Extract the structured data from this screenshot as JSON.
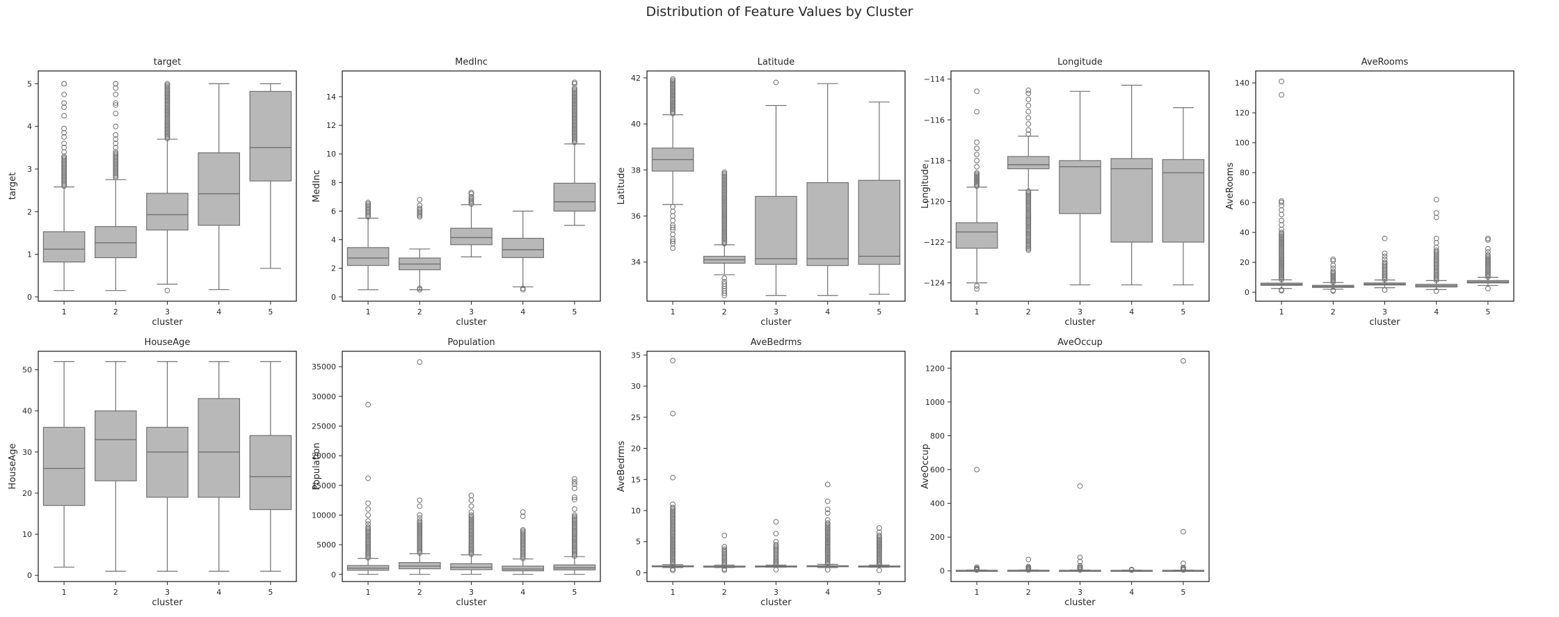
{
  "figure": {
    "suptitle": "Distribution of Feature Values by Cluster",
    "box_color": "#b8b8b8",
    "edge_color": "#707070"
  },
  "chart_data": [
    {
      "type": "box",
      "title": "target",
      "xlabel": "cluster",
      "ylabel": "target",
      "categories": [
        "1",
        "2",
        "3",
        "4",
        "5"
      ],
      "ylim": [
        -0.1,
        5.3
      ],
      "yticks": [
        0,
        1,
        2,
        3,
        4,
        5
      ],
      "boxes": [
        {
          "q1": 0.82,
          "median": 1.12,
          "q3": 1.53,
          "whisker_low": 0.15,
          "whisker_high": 2.58,
          "outliers_dense": [
            2.6,
            3.3
          ],
          "outliers": [
            3.4,
            3.5,
            3.6,
            3.75,
            3.85,
            3.95,
            4.25,
            4.45,
            4.55,
            4.75,
            5.0,
            5.0
          ]
        },
        {
          "q1": 0.92,
          "median": 1.27,
          "q3": 1.65,
          "whisker_low": 0.15,
          "whisker_high": 2.75,
          "outliers_dense": [
            2.8,
            3.4
          ],
          "outliers": [
            3.5,
            3.6,
            3.7,
            3.8,
            4.0,
            4.3,
            4.5,
            4.55,
            4.75,
            4.9,
            5.0,
            5.0
          ]
        },
        {
          "q1": 1.57,
          "median": 1.93,
          "q3": 2.43,
          "whisker_low": 0.3,
          "whisker_high": 3.7,
          "outliers_dense": [
            3.72,
            5.0
          ],
          "outliers": [
            0.15
          ]
        },
        {
          "q1": 1.68,
          "median": 2.42,
          "q3": 3.38,
          "whisker_low": 0.17,
          "whisker_high": 5.0,
          "outliers_dense": [],
          "outliers": []
        },
        {
          "q1": 2.72,
          "median": 3.5,
          "q3": 4.82,
          "whisker_low": 0.67,
          "whisker_high": 5.0,
          "outliers_dense": [],
          "outliers": []
        }
      ]
    },
    {
      "type": "box",
      "title": "MedInc",
      "xlabel": "cluster",
      "ylabel": "MedInc",
      "categories": [
        "1",
        "2",
        "3",
        "4",
        "5"
      ],
      "ylim": [
        -0.3,
        15.8
      ],
      "yticks": [
        0,
        2,
        4,
        6,
        8,
        10,
        12,
        14
      ],
      "boxes": [
        {
          "q1": 2.2,
          "median": 2.72,
          "q3": 3.45,
          "whisker_low": 0.5,
          "whisker_high": 5.5,
          "outliers_dense": [
            5.6,
            6.5
          ],
          "outliers": [
            6.6
          ]
        },
        {
          "q1": 1.9,
          "median": 2.3,
          "q3": 2.72,
          "whisker_low": 0.5,
          "whisker_high": 3.35,
          "outliers_dense": [
            5.6,
            6.2
          ],
          "outliers": [
            0.5,
            0.6,
            6.4,
            6.8
          ]
        },
        {
          "q1": 3.65,
          "median": 4.15,
          "q3": 4.8,
          "whisker_low": 2.8,
          "whisker_high": 6.45,
          "outliers_dense": [
            6.5,
            7.0
          ],
          "outliers": [
            7.2,
            7.3
          ]
        },
        {
          "q1": 2.75,
          "median": 3.3,
          "q3": 4.1,
          "whisker_low": 0.7,
          "whisker_high": 6.0,
          "outliers_dense": [],
          "outliers": [
            0.5,
            0.6
          ]
        },
        {
          "q1": 6.0,
          "median": 6.65,
          "q3": 7.95,
          "whisker_low": 5.0,
          "whisker_high": 10.7,
          "outliers_dense": [
            10.8,
            14.6
          ],
          "outliers": [
            14.9,
            15.0,
            15.0
          ]
        }
      ]
    },
    {
      "type": "box",
      "title": "Latitude",
      "xlabel": "cluster",
      "ylabel": "Latitude",
      "categories": [
        "1",
        "2",
        "3",
        "4",
        "5"
      ],
      "ylim": [
        32.3,
        42.3
      ],
      "yticks": [
        34,
        36,
        38,
        40,
        42
      ],
      "boxes": [
        {
          "q1": 37.95,
          "median": 38.45,
          "q3": 38.95,
          "whisker_low": 36.5,
          "whisker_high": 40.4,
          "outliers_dense": [
            40.45,
            41.95
          ],
          "outliers": [
            34.6,
            34.8,
            34.9,
            35.0,
            35.2,
            35.4,
            35.5,
            35.6,
            35.8,
            36.0,
            36.2,
            36.4
          ]
        },
        {
          "q1": 33.95,
          "median": 34.1,
          "q3": 34.25,
          "whisker_low": 33.45,
          "whisker_high": 34.75,
          "outliers_dense": [
            34.8,
            37.9
          ],
          "outliers": [
            32.55,
            32.65,
            32.75,
            32.85,
            32.95,
            33.05,
            33.15,
            33.3
          ]
        },
        {
          "q1": 33.9,
          "median": 34.15,
          "q3": 36.85,
          "whisker_low": 32.55,
          "whisker_high": 40.8,
          "outliers_dense": [],
          "outliers": [
            41.8
          ]
        },
        {
          "q1": 33.85,
          "median": 34.15,
          "q3": 37.45,
          "whisker_low": 32.55,
          "whisker_high": 41.75,
          "outliers_dense": [],
          "outliers": []
        },
        {
          "q1": 33.9,
          "median": 34.25,
          "q3": 37.55,
          "whisker_low": 32.6,
          "whisker_high": 40.95,
          "outliers_dense": [],
          "outliers": []
        }
      ]
    },
    {
      "type": "box",
      "title": "Longitude",
      "xlabel": "cluster",
      "ylabel": "Longitude",
      "categories": [
        "1",
        "2",
        "3",
        "4",
        "5"
      ],
      "ylim": [
        -124.9,
        -113.6
      ],
      "yticks": [
        -124,
        -122,
        -120,
        -118,
        -116,
        -114
      ],
      "boxes": [
        {
          "q1": -122.3,
          "median": -121.5,
          "q3": -121.05,
          "whisker_low": -124.0,
          "whisker_high": -119.3,
          "outliers_dense": [
            -119.25,
            -118.6
          ],
          "outliers": [
            -124.3,
            -124.15,
            -118.3,
            -118.0,
            -117.7,
            -117.4,
            -117.1,
            -115.6,
            -114.6
          ]
        },
        {
          "q1": -118.4,
          "median": -118.2,
          "q3": -117.8,
          "whisker_low": -119.45,
          "whisker_high": -116.8,
          "outliers_dense": [
            -122.4,
            -119.5
          ],
          "outliers": [
            -116.7,
            -116.5,
            -116.2,
            -115.9,
            -115.6,
            -115.3,
            -115.0,
            -114.7,
            -114.55
          ]
        },
        {
          "q1": -120.6,
          "median": -118.3,
          "q3": -118.0,
          "whisker_low": -124.1,
          "whisker_high": -114.6,
          "outliers_dense": [],
          "outliers": []
        },
        {
          "q1": -122.0,
          "median": -118.4,
          "q3": -117.9,
          "whisker_low": -124.1,
          "whisker_high": -114.3,
          "outliers_dense": [],
          "outliers": []
        },
        {
          "q1": -122.0,
          "median": -118.6,
          "q3": -117.95,
          "whisker_low": -124.1,
          "whisker_high": -115.4,
          "outliers_dense": [],
          "outliers": []
        }
      ]
    },
    {
      "type": "box",
      "title": "AveRooms",
      "xlabel": "cluster",
      "ylabel": "AveRooms",
      "categories": [
        "1",
        "2",
        "3",
        "4",
        "5"
      ],
      "ylim": [
        -6,
        148
      ],
      "yticks": [
        0,
        20,
        40,
        60,
        80,
        100,
        120,
        140
      ],
      "boxes": [
        {
          "q1": 4.6,
          "median": 5.3,
          "q3": 6.1,
          "whisker_low": 2.5,
          "whisker_high": 8.3,
          "outliers_dense": [
            8.5,
            40
          ],
          "outliers": [
            1.0,
            1.5,
            42,
            45,
            48,
            52,
            55,
            58,
            60,
            61,
            132,
            141
          ]
        },
        {
          "q1": 3.2,
          "median": 3.9,
          "q3": 4.6,
          "whisker_low": 2.0,
          "whisker_high": 6.5,
          "outliers_dense": [
            6.7,
            14
          ],
          "outliers": [
            0.8,
            1.2,
            16,
            18,
            21,
            22
          ]
        },
        {
          "q1": 4.8,
          "median": 5.4,
          "q3": 6.2,
          "whisker_low": 3.0,
          "whisker_high": 8.2,
          "outliers_dense": [
            8.4,
            20
          ],
          "outliers": [
            1.5,
            22,
            24,
            26,
            36
          ]
        },
        {
          "q1": 3.5,
          "median": 4.3,
          "q3": 5.3,
          "whisker_low": 1.8,
          "whisker_high": 7.8,
          "outliers_dense": [
            8.0,
            28
          ],
          "outliers": [
            0.8,
            30,
            33,
            36,
            50,
            53,
            62
          ]
        },
        {
          "q1": 6.2,
          "median": 6.9,
          "q3": 7.8,
          "whisker_low": 4.5,
          "whisker_high": 10.0,
          "outliers_dense": [
            10.2,
            25
          ],
          "outliers": [
            2.5,
            27,
            29,
            35,
            36
          ]
        }
      ]
    },
    {
      "type": "box",
      "title": "HouseAge",
      "xlabel": "cluster",
      "ylabel": "HouseAge",
      "categories": [
        "1",
        "2",
        "3",
        "4",
        "5"
      ],
      "ylim": [
        -1.5,
        54.5
      ],
      "yticks": [
        0,
        10,
        20,
        30,
        40,
        50
      ],
      "boxes": [
        {
          "q1": 17,
          "median": 26,
          "q3": 36,
          "whisker_low": 2,
          "whisker_high": 52,
          "outliers_dense": [],
          "outliers": []
        },
        {
          "q1": 23,
          "median": 33,
          "q3": 40,
          "whisker_low": 1,
          "whisker_high": 52,
          "outliers_dense": [],
          "outliers": []
        },
        {
          "q1": 19,
          "median": 30,
          "q3": 36,
          "whisker_low": 1,
          "whisker_high": 52,
          "outliers_dense": [],
          "outliers": []
        },
        {
          "q1": 19,
          "median": 30,
          "q3": 43,
          "whisker_low": 1,
          "whisker_high": 52,
          "outliers_dense": [],
          "outliers": []
        },
        {
          "q1": 16,
          "median": 24,
          "q3": 34,
          "whisker_low": 1,
          "whisker_high": 52,
          "outliers_dense": [],
          "outliers": []
        }
      ]
    },
    {
      "type": "box",
      "title": "Population",
      "xlabel": "cluster",
      "ylabel": "Population",
      "categories": [
        "1",
        "2",
        "3",
        "4",
        "5"
      ],
      "ylim": [
        -1200,
        37600
      ],
      "yticks": [
        0,
        5000,
        10000,
        15000,
        20000,
        25000,
        30000,
        35000
      ],
      "boxes": [
        {
          "q1": 700,
          "median": 1050,
          "q3": 1500,
          "whisker_low": 10,
          "whisker_high": 2700,
          "outliers_dense": [
            2800,
            8000
          ],
          "outliers": [
            8500,
            9000,
            10000,
            11000,
            12000,
            16200,
            28600
          ]
        },
        {
          "q1": 950,
          "median": 1400,
          "q3": 2000,
          "whisker_low": 10,
          "whisker_high": 3500,
          "outliers_dense": [
            3600,
            9000
          ],
          "outliers": [
            9500,
            10000,
            11500,
            12500,
            35800
          ]
        },
        {
          "q1": 800,
          "median": 1200,
          "q3": 1800,
          "whisker_low": 10,
          "whisker_high": 3300,
          "outliers_dense": [
            3400,
            10000
          ],
          "outliers": [
            10500,
            11500,
            12500,
            13300
          ]
        },
        {
          "q1": 600,
          "median": 900,
          "q3": 1400,
          "whisker_low": 10,
          "whisker_high": 2600,
          "outliers_dense": [
            2700,
            7500
          ],
          "outliers": [
            9800,
            10500
          ]
        },
        {
          "q1": 750,
          "median": 1100,
          "q3": 1600,
          "whisker_low": 10,
          "whisker_high": 3000,
          "outliers_dense": [
            3100,
            10000
          ],
          "outliers": [
            11000,
            12600,
            13000,
            14500,
            15200,
            15600,
            16100
          ]
        }
      ]
    },
    {
      "type": "box",
      "title": "AveBedrms",
      "xlabel": "cluster",
      "ylabel": "AveBedrms",
      "categories": [
        "1",
        "2",
        "3",
        "4",
        "5"
      ],
      "ylim": [
        -1.4,
        35.6
      ],
      "yticks": [
        0,
        5,
        10,
        15,
        20,
        25,
        30,
        35
      ],
      "boxes": [
        {
          "q1": 1.0,
          "median": 1.06,
          "q3": 1.13,
          "whisker_low": 0.85,
          "whisker_high": 1.32,
          "outliers_dense": [
            1.35,
            10.5
          ],
          "outliers": [
            0.4,
            0.6,
            11,
            15.3,
            25.6,
            34.1
          ]
        },
        {
          "q1": 0.97,
          "median": 1.02,
          "q3": 1.08,
          "whisker_low": 0.85,
          "whisker_high": 1.25,
          "outliers_dense": [
            1.3,
            3.8
          ],
          "outliers": [
            0.4,
            0.6,
            4.2,
            6.0
          ]
        },
        {
          "q1": 1.0,
          "median": 1.04,
          "q3": 1.1,
          "whisker_low": 0.9,
          "whisker_high": 1.25,
          "outliers_dense": [
            1.3,
            4.5
          ],
          "outliers": [
            0.5,
            5.0,
            6.3,
            8.2
          ]
        },
        {
          "q1": 1.0,
          "median": 1.05,
          "q3": 1.14,
          "whisker_low": 0.85,
          "whisker_high": 1.35,
          "outliers_dense": [
            1.4,
            8.0
          ],
          "outliers": [
            0.5,
            8.5,
            9.6,
            10.2,
            11.5,
            14.2
          ]
        },
        {
          "q1": 1.0,
          "median": 1.04,
          "q3": 1.1,
          "whisker_low": 0.9,
          "whisker_high": 1.25,
          "outliers_dense": [
            1.3,
            6.0
          ],
          "outliers": [
            0.4,
            6.5,
            7.2
          ]
        }
      ]
    },
    {
      "type": "box",
      "title": "AveOccup",
      "xlabel": "cluster",
      "ylabel": "AveOccup",
      "categories": [
        "1",
        "2",
        "3",
        "4",
        "5"
      ],
      "ylim": [
        -63,
        1300
      ],
      "yticks": [
        0,
        200,
        400,
        600,
        800,
        1000,
        1200
      ],
      "boxes": [
        {
          "q1": 2.3,
          "median": 2.8,
          "q3": 3.3,
          "whisker_low": 0.8,
          "whisker_high": 4.8,
          "outliers_dense": [
            5,
            12
          ],
          "outliers": [
            15,
            22,
            600
          ]
        },
        {
          "q1": 2.5,
          "median": 3.0,
          "q3": 3.6,
          "whisker_low": 1.0,
          "whisker_high": 5.0,
          "outliers_dense": [
            5.2,
            15
          ],
          "outliers": [
            20,
            25,
            67
          ]
        },
        {
          "q1": 2.3,
          "median": 2.8,
          "q3": 3.3,
          "whisker_low": 1.0,
          "whisker_high": 4.8,
          "outliers_dense": [
            5,
            18
          ],
          "outliers": [
            22,
            30,
            55,
            80,
            502
          ]
        },
        {
          "q1": 2.0,
          "median": 2.5,
          "q3": 3.0,
          "whisker_low": 0.8,
          "whisker_high": 4.4,
          "outliers_dense": [
            4.6,
            8
          ],
          "outliers": []
        },
        {
          "q1": 2.3,
          "median": 2.8,
          "q3": 3.2,
          "whisker_low": 1.0,
          "whisker_high": 4.6,
          "outliers_dense": [
            4.8,
            15
          ],
          "outliers": [
            20,
            45,
            232,
            1243
          ]
        }
      ]
    }
  ]
}
